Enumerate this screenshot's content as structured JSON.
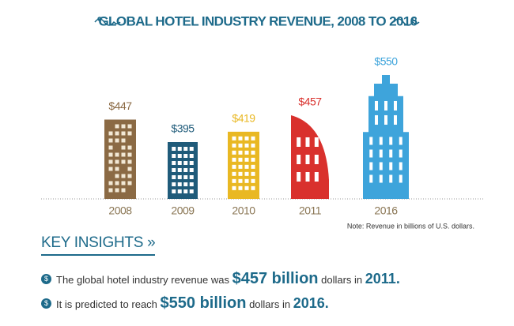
{
  "chart_data": {
    "type": "bar",
    "title": "GLOBAL HOTEL INDUSTRY REVENUE, 2008 TO 2016",
    "categories": [
      "2008",
      "2009",
      "2010",
      "2011",
      "2016"
    ],
    "values": [
      447,
      395,
      419,
      457,
      550
    ],
    "value_labels": [
      "$447",
      "$395",
      "$419",
      "$457",
      "$550"
    ],
    "colors": [
      "#8b6a44",
      "#1f5b7a",
      "#e9b823",
      "#d9312d",
      "#3ea4db"
    ],
    "note": "Note: Revenue in billions of U.S. dollars."
  },
  "insights": {
    "title": "KEY INSIGHTS »",
    "items": [
      [
        "The global hotel industry revenue was ",
        "$457 billion",
        " dollars in ",
        "2011."
      ],
      [
        "It is predicted to reach ",
        "$550 billion",
        " dollars in ",
        "2016."
      ]
    ]
  }
}
